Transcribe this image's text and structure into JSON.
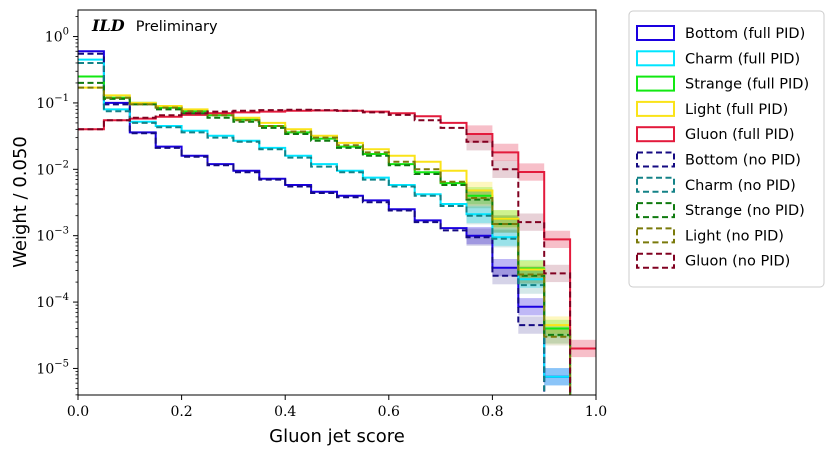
{
  "chart_data": {
    "type": "histogram-step",
    "title": "",
    "xlabel": "Gluon jet score",
    "ylabel": "Weight / 0.050",
    "xlim": [
      0,
      1
    ],
    "ylim_log10": [
      -5.4,
      0.4
    ],
    "yscale": "log",
    "x_tick_values": [
      0,
      0.2,
      0.4,
      0.6,
      0.8,
      1.0
    ],
    "x_tick_labels": [
      "0.0",
      "0.2",
      "0.4",
      "0.6",
      "0.8",
      "1.0"
    ],
    "y_tick_exponents": [
      -5,
      -4,
      -3,
      -2,
      -1,
      0
    ],
    "y_tick_labels": [
      {
        "base": "10",
        "exp": "−5"
      },
      {
        "base": "10",
        "exp": "−4"
      },
      {
        "base": "10",
        "exp": "−3"
      },
      {
        "base": "10",
        "exp": "−2"
      },
      {
        "base": "10",
        "exp": "−1"
      },
      {
        "base": "10",
        "exp": "0"
      }
    ],
    "annotation": {
      "bold": "ILD",
      "rest": "Preliminary"
    },
    "legend_location": "outside-right",
    "bin_edges": [
      0,
      0.05,
      0.1,
      0.15,
      0.2,
      0.25,
      0.3,
      0.35,
      0.4,
      0.45,
      0.5,
      0.55,
      0.6,
      0.65,
      0.7,
      0.75,
      0.8,
      0.85,
      0.9,
      0.95,
      1.0
    ],
    "series": [
      {
        "name": "Bottom (full PID)",
        "color": "#1a00e0",
        "dashed": false,
        "values": [
          0.6,
          0.1,
          0.036,
          0.022,
          0.016,
          0.012,
          0.0095,
          0.0072,
          0.0058,
          0.0046,
          0.004,
          0.0034,
          0.0025,
          0.0017,
          0.0013,
          0.001,
          0.00033,
          8.5e-05,
          7.5e-06,
          null
        ]
      },
      {
        "name": "Charm (full PID)",
        "color": "#00e5ff",
        "dashed": false,
        "values": [
          0.45,
          0.08,
          0.052,
          0.045,
          0.038,
          0.032,
          0.027,
          0.021,
          0.016,
          0.012,
          0.0095,
          0.0075,
          0.0058,
          0.0042,
          0.003,
          0.0021,
          0.00095,
          0.00022,
          7.5e-06,
          null
        ]
      },
      {
        "name": "Strange (full PID)",
        "color": "#12e812",
        "dashed": false,
        "values": [
          0.25,
          0.12,
          0.1,
          0.085,
          0.075,
          0.065,
          0.056,
          0.045,
          0.036,
          0.029,
          0.022,
          0.017,
          0.012,
          0.009,
          0.0062,
          0.004,
          0.0018,
          0.00032,
          4e-05,
          null
        ]
      },
      {
        "name": "Light (full PID)",
        "color": "#fae319",
        "dashed": false,
        "values": [
          0.17,
          0.13,
          0.1,
          0.09,
          0.08,
          0.07,
          0.06,
          0.05,
          0.04,
          0.032,
          0.025,
          0.02,
          0.016,
          0.013,
          0.0095,
          0.0048,
          0.0018,
          0.00031,
          4.5e-05,
          null
        ]
      },
      {
        "name": "Gluon (full PID)",
        "color": "#e31a3c",
        "dashed": false,
        "values": [
          0.04,
          0.055,
          0.058,
          0.062,
          0.066,
          0.07,
          0.072,
          0.074,
          0.076,
          0.077,
          0.076,
          0.074,
          0.07,
          0.063,
          0.05,
          0.034,
          0.018,
          0.0091,
          0.00088,
          2e-05
        ]
      },
      {
        "name": "Bottom (no PID)",
        "color": "#140a82",
        "dashed": true,
        "values": [
          0.55,
          0.095,
          0.035,
          0.021,
          0.0155,
          0.0115,
          0.009,
          0.007,
          0.0055,
          0.0044,
          0.0038,
          0.0032,
          0.0024,
          0.0016,
          0.0012,
          0.00095,
          0.00025,
          4.5e-05,
          null,
          null
        ]
      },
      {
        "name": "Charm (no PID)",
        "color": "#138287",
        "dashed": true,
        "values": [
          0.4,
          0.075,
          0.05,
          0.043,
          0.036,
          0.03,
          0.026,
          0.02,
          0.015,
          0.011,
          0.009,
          0.007,
          0.0055,
          0.004,
          0.0028,
          0.002,
          0.0009,
          0.00018,
          null,
          null
        ]
      },
      {
        "name": "Strange (no PID)",
        "color": "#0f7a0f",
        "dashed": true,
        "values": [
          0.2,
          0.115,
          0.095,
          0.08,
          0.07,
          0.06,
          0.052,
          0.042,
          0.034,
          0.027,
          0.021,
          0.016,
          0.0115,
          0.0085,
          0.0058,
          0.0035,
          0.0015,
          0.00025,
          3.2e-05,
          null
        ]
      },
      {
        "name": "Light (no PID)",
        "color": "#7a7a0a",
        "dashed": true,
        "values": [
          0.17,
          0.12,
          0.095,
          0.085,
          0.075,
          0.065,
          0.055,
          0.045,
          0.037,
          0.03,
          0.023,
          0.018,
          0.013,
          0.01,
          0.0065,
          0.0037,
          0.0015,
          0.00026,
          3e-05,
          null
        ]
      },
      {
        "name": "Gluon (no PID)",
        "color": "#800020",
        "dashed": true,
        "values": [
          0.04,
          0.055,
          0.06,
          0.065,
          0.07,
          0.074,
          0.076,
          0.078,
          0.079,
          0.078,
          0.076,
          0.072,
          0.066,
          0.055,
          0.042,
          0.026,
          0.01,
          0.0016,
          0.00027,
          null
        ]
      }
    ]
  }
}
